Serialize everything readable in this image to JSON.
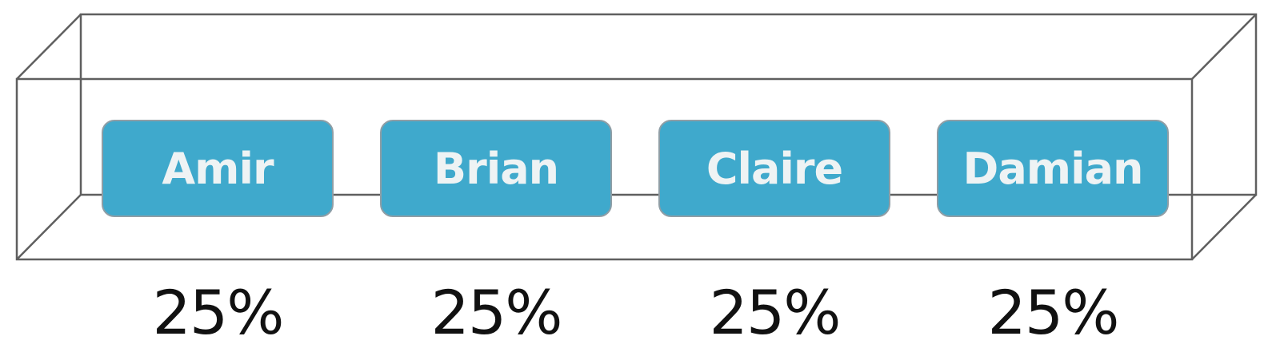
{
  "diagram": {
    "people": [
      {
        "name": "Amir",
        "share": "25%"
      },
      {
        "name": "Brian",
        "share": "25%"
      },
      {
        "name": "Claire",
        "share": "25%"
      },
      {
        "name": "Damian",
        "share": "25%"
      }
    ],
    "colors": {
      "card_fill": "#3fa9cc",
      "card_text": "#eef3f4",
      "box_outline": "#5f5f5f",
      "share_text": "#111111"
    }
  }
}
